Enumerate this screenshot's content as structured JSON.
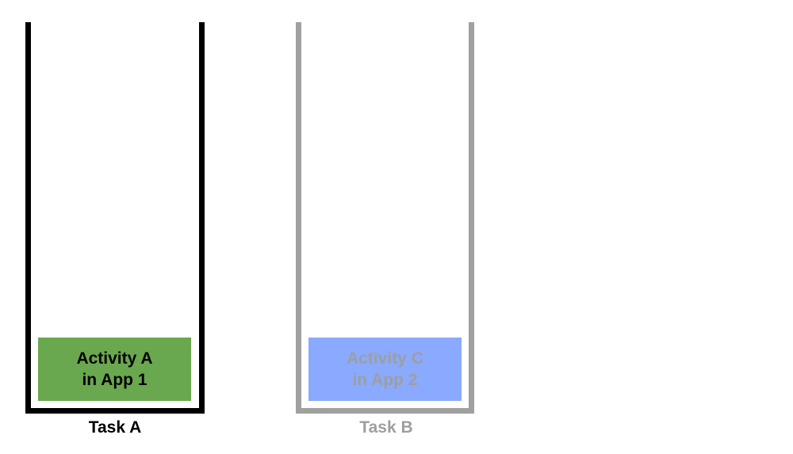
{
  "tasks": [
    {
      "label": "Task A",
      "border_color": "#000000",
      "label_color": "#000000",
      "activity": {
        "line1": "Activity A",
        "line2": "in App 1",
        "fill": "#6aa84f",
        "text_color": "#000000"
      }
    },
    {
      "label": "Task B",
      "border_color": "#a0a0a0",
      "label_color": "#9e9e9e",
      "activity": {
        "line1": "Activity C",
        "line2": "in App 2",
        "fill": "#8aaaff",
        "text_color": "#9e9e9e"
      }
    }
  ]
}
